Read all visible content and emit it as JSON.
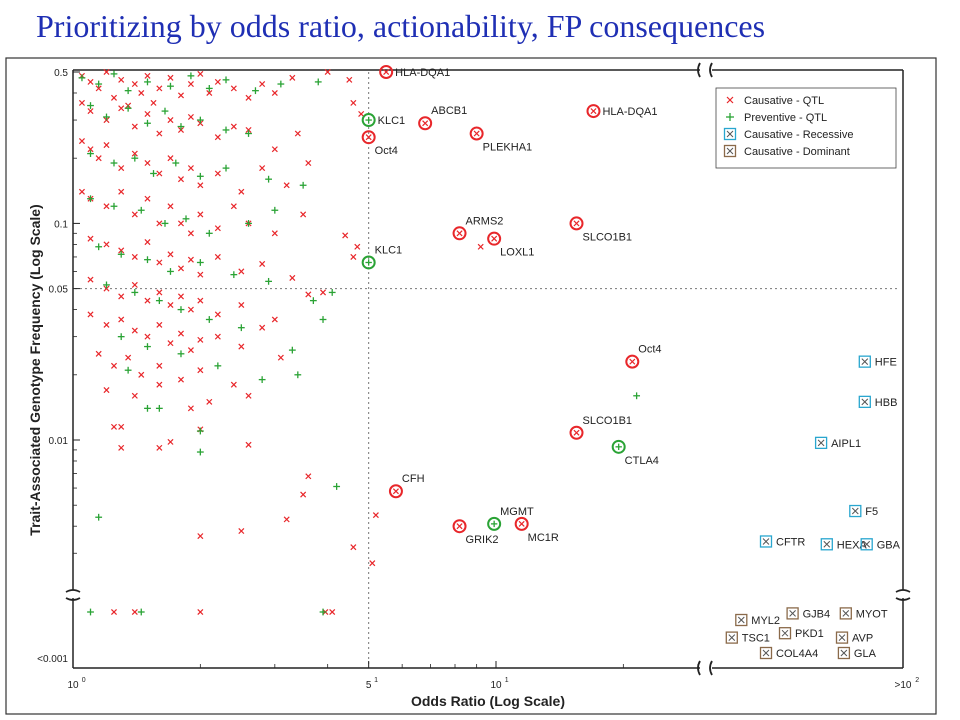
{
  "page": {
    "title": "Prioritizing by odds ratio, actionability, FP consequences"
  },
  "colors": {
    "qtl_causative": "#e8262a",
    "qtl_preventive": "#2aa335",
    "recessive": "#29a6cf",
    "dominant": "#8a6a4a",
    "title": "#1f2fb4"
  },
  "chart_data": {
    "type": "scatter",
    "xlabel": "Odds Ratio (Log Scale)",
    "ylabel": "Trait-Associated Genotype Frequency (Log Scale)",
    "xscale": "log",
    "yscale": "log",
    "xlim": [
      1,
      100
    ],
    "ylim": [
      0.001,
      0.5
    ],
    "x_ticks": [
      "10",
      "5",
      "10",
      ">10"
    ],
    "x_tick_exponents": [
      "0",
      "1",
      "1",
      "2"
    ],
    "y_ticks": [
      "0.5",
      "0.1",
      "0.05",
      "0.01",
      "<0.001"
    ],
    "reference_lines": {
      "x": 5,
      "y": 0.05,
      "style": "dotted"
    },
    "legend": {
      "placement": "top-right",
      "entries": [
        {
          "label": "Causative - QTL",
          "marker": "x",
          "color": "#e8262a"
        },
        {
          "label": "Preventive - QTL",
          "marker": "+",
          "color": "#2aa335"
        },
        {
          "label": "Causative - Recessive",
          "marker": "boxed-x",
          "color": "#29a6cf"
        },
        {
          "label": "Causative - Dominant",
          "marker": "boxed-x",
          "color": "#8a6a4a"
        }
      ]
    },
    "highlighted": [
      {
        "label": "HLA-DQA1",
        "x": 5.5,
        "y": 0.5,
        "class": "causative",
        "label_pos": "right"
      },
      {
        "label": "HLA-DQA1",
        "x": 17,
        "y": 0.33,
        "class": "causative",
        "label_pos": "right"
      },
      {
        "label": "KLC1",
        "x": 5,
        "y": 0.3,
        "class": "preventive",
        "label_pos": "right"
      },
      {
        "label": "Oct4",
        "x": 5,
        "y": 0.25,
        "class": "causative",
        "label_pos": "below-right"
      },
      {
        "label": "ABCB1",
        "x": 6.8,
        "y": 0.29,
        "class": "causative",
        "label_pos": "above-right"
      },
      {
        "label": "PLEKHA1",
        "x": 9,
        "y": 0.26,
        "class": "causative",
        "label_pos": "below-right"
      },
      {
        "label": "ARMS2",
        "x": 8.2,
        "y": 0.09,
        "class": "causative",
        "label_pos": "above-right"
      },
      {
        "label": "LOXL1",
        "x": 9.9,
        "y": 0.085,
        "class": "causative",
        "label_pos": "below-right"
      },
      {
        "label": "SLCO1B1",
        "x": 15.5,
        "y": 0.1,
        "class": "causative",
        "label_pos": "below-right"
      },
      {
        "label": "KLC1",
        "x": 5,
        "y": 0.066,
        "class": "preventive",
        "label_pos": "above-right"
      },
      {
        "label": "Oct4",
        "x": 21,
        "y": 0.023,
        "class": "causative",
        "label_pos": "above-right"
      },
      {
        "label": "SLCO1B1",
        "x": 15.5,
        "y": 0.0108,
        "class": "causative",
        "label_pos": "above-right"
      },
      {
        "label": "CTLA4",
        "x": 19.5,
        "y": 0.0093,
        "class": "preventive",
        "label_pos": "below-right"
      },
      {
        "label": "CFH",
        "x": 5.8,
        "y": 0.0058,
        "class": "causative",
        "label_pos": "above-right"
      },
      {
        "label": "MGMT",
        "x": 9.9,
        "y": 0.0041,
        "class": "preventive",
        "label_pos": "above-right"
      },
      {
        "label": "GRIK2",
        "x": 8.2,
        "y": 0.004,
        "class": "causative",
        "label_pos": "below-right"
      },
      {
        "label": "MC1R",
        "x": 11.5,
        "y": 0.0041,
        "class": "causative",
        "label_pos": "below-right"
      }
    ],
    "recessive": [
      {
        "label": "HFE",
        "row": "upper",
        "y": 0.023,
        "col": 3.6
      },
      {
        "label": "HBB",
        "row": "upper",
        "y": 0.015,
        "col": 3.6
      },
      {
        "label": "AIPL1",
        "row": "upper",
        "y": 0.0097,
        "col": 2.45
      },
      {
        "label": "F5",
        "row": "upper",
        "y": 0.0047,
        "col": 3.35
      },
      {
        "label": "CFTR",
        "row": "upper",
        "y": 0.0034,
        "col": 1.0
      },
      {
        "label": "HEXA",
        "row": "upper",
        "y": 0.0033,
        "col": 2.6
      },
      {
        "label": "GBA",
        "row": "upper",
        "y": 0.0033,
        "col": 3.65
      }
    ],
    "dominant": [
      {
        "label": "MYL2",
        "lane": 0,
        "col": 0.35
      },
      {
        "label": "GJB4",
        "lane": -0.3,
        "col": 1.7
      },
      {
        "label": "MYOT",
        "lane": -0.3,
        "col": 3.1
      },
      {
        "label": "TSC1",
        "lane": 0.8,
        "col": 0.1
      },
      {
        "label": "PKD1",
        "lane": 0.6,
        "col": 1.5
      },
      {
        "label": "AVP",
        "lane": 0.8,
        "col": 3.0
      },
      {
        "label": "COL4A4",
        "lane": 1.5,
        "col": 1.0
      },
      {
        "label": "GLA",
        "lane": 1.5,
        "col": 3.05
      }
    ],
    "background_points": {
      "causative": [
        [
          1.05,
          0.48
        ],
        [
          1.1,
          0.45
        ],
        [
          1.15,
          0.42
        ],
        [
          1.2,
          0.5
        ],
        [
          1.25,
          0.38
        ],
        [
          1.3,
          0.46
        ],
        [
          1.35,
          0.35
        ],
        [
          1.4,
          0.44
        ],
        [
          1.45,
          0.4
        ],
        [
          1.5,
          0.48
        ],
        [
          1.55,
          0.36
        ],
        [
          1.6,
          0.42
        ],
        [
          1.7,
          0.47
        ],
        [
          1.8,
          0.39
        ],
        [
          1.9,
          0.44
        ],
        [
          2.0,
          0.49
        ],
        [
          2.1,
          0.4
        ],
        [
          2.2,
          0.45
        ],
        [
          2.4,
          0.42
        ],
        [
          2.6,
          0.38
        ],
        [
          2.8,
          0.44
        ],
        [
          3.0,
          0.4
        ],
        [
          3.3,
          0.47
        ],
        [
          4.0,
          0.5
        ],
        [
          4.5,
          0.46
        ],
        [
          1.05,
          0.36
        ],
        [
          1.1,
          0.33
        ],
        [
          1.2,
          0.3
        ],
        [
          1.3,
          0.34
        ],
        [
          1.4,
          0.28
        ],
        [
          1.5,
          0.32
        ],
        [
          1.6,
          0.26
        ],
        [
          1.7,
          0.3
        ],
        [
          1.8,
          0.27
        ],
        [
          1.9,
          0.31
        ],
        [
          2.0,
          0.29
        ],
        [
          2.2,
          0.25
        ],
        [
          2.4,
          0.28
        ],
        [
          2.6,
          0.27
        ],
        [
          3.0,
          0.22
        ],
        [
          3.4,
          0.26
        ],
        [
          4.6,
          0.36
        ],
        [
          4.8,
          0.32
        ],
        [
          1.05,
          0.24
        ],
        [
          1.1,
          0.22
        ],
        [
          1.15,
          0.2
        ],
        [
          1.2,
          0.23
        ],
        [
          1.3,
          0.18
        ],
        [
          1.4,
          0.21
        ],
        [
          1.5,
          0.19
        ],
        [
          1.6,
          0.17
        ],
        [
          1.7,
          0.2
        ],
        [
          1.8,
          0.16
        ],
        [
          1.9,
          0.18
        ],
        [
          2.0,
          0.15
        ],
        [
          2.2,
          0.17
        ],
        [
          2.5,
          0.14
        ],
        [
          2.8,
          0.18
        ],
        [
          3.2,
          0.15
        ],
        [
          3.6,
          0.19
        ],
        [
          1.05,
          0.14
        ],
        [
          1.1,
          0.13
        ],
        [
          1.2,
          0.12
        ],
        [
          1.3,
          0.14
        ],
        [
          1.4,
          0.11
        ],
        [
          1.5,
          0.13
        ],
        [
          1.6,
          0.1
        ],
        [
          1.7,
          0.12
        ],
        [
          1.8,
          0.1
        ],
        [
          1.9,
          0.09
        ],
        [
          2.0,
          0.11
        ],
        [
          2.2,
          0.095
        ],
        [
          2.4,
          0.12
        ],
        [
          2.6,
          0.1
        ],
        [
          3.0,
          0.09
        ],
        [
          3.5,
          0.11
        ],
        [
          4.4,
          0.088
        ],
        [
          4.7,
          0.078
        ],
        [
          1.1,
          0.085
        ],
        [
          1.2,
          0.08
        ],
        [
          1.3,
          0.075
        ],
        [
          1.4,
          0.07
        ],
        [
          1.5,
          0.082
        ],
        [
          1.6,
          0.066
        ],
        [
          1.7,
          0.072
        ],
        [
          1.8,
          0.062
        ],
        [
          1.9,
          0.068
        ],
        [
          2.0,
          0.058
        ],
        [
          2.2,
          0.07
        ],
        [
          2.5,
          0.06
        ],
        [
          2.8,
          0.065
        ],
        [
          3.3,
          0.056
        ],
        [
          3.9,
          0.048
        ],
        [
          1.1,
          0.055
        ],
        [
          1.2,
          0.05
        ],
        [
          1.3,
          0.046
        ],
        [
          1.4,
          0.052
        ],
        [
          1.5,
          0.044
        ],
        [
          1.6,
          0.048
        ],
        [
          1.7,
          0.042
        ],
        [
          1.8,
          0.046
        ],
        [
          1.9,
          0.04
        ],
        [
          2.0,
          0.044
        ],
        [
          2.2,
          0.038
        ],
        [
          2.5,
          0.042
        ],
        [
          3.0,
          0.036
        ],
        [
          3.6,
          0.047
        ],
        [
          1.1,
          0.038
        ],
        [
          1.2,
          0.034
        ],
        [
          1.3,
          0.036
        ],
        [
          1.4,
          0.032
        ],
        [
          1.5,
          0.03
        ],
        [
          1.6,
          0.034
        ],
        [
          1.7,
          0.028
        ],
        [
          1.8,
          0.031
        ],
        [
          1.9,
          0.026
        ],
        [
          2.0,
          0.029
        ],
        [
          2.2,
          0.03
        ],
        [
          2.5,
          0.027
        ],
        [
          2.8,
          0.033
        ],
        [
          1.15,
          0.025
        ],
        [
          1.25,
          0.022
        ],
        [
          1.35,
          0.024
        ],
        [
          1.45,
          0.02
        ],
        [
          1.6,
          0.022
        ],
        [
          1.8,
          0.019
        ],
        [
          2.0,
          0.021
        ],
        [
          2.4,
          0.018
        ],
        [
          3.1,
          0.024
        ],
        [
          1.2,
          0.017
        ],
        [
          1.4,
          0.016
        ],
        [
          1.6,
          0.018
        ],
        [
          1.9,
          0.014
        ],
        [
          2.1,
          0.015
        ],
        [
          2.6,
          0.016
        ],
        [
          1.25,
          0.0115
        ],
        [
          1.3,
          0.0115
        ],
        [
          1.7,
          0.0098
        ],
        [
          2.0,
          0.0112
        ],
        [
          2.6,
          0.0095
        ],
        [
          1.3,
          0.0092
        ],
        [
          1.6,
          0.0092
        ],
        [
          3.6,
          0.0068
        ],
        [
          3.5,
          0.0056
        ],
        [
          2.0,
          0.0036
        ],
        [
          2.5,
          0.0038
        ],
        [
          3.2,
          0.0043
        ],
        [
          4.6,
          0.0032
        ],
        [
          5.2,
          0.0045
        ],
        [
          5.1,
          0.0027
        ],
        [
          9.2,
          0.078
        ],
        [
          4.6,
          0.07
        ],
        [
          1.25,
          0.0009
        ],
        [
          1.4,
          0.0009
        ],
        [
          2.0,
          0.0009
        ],
        [
          4.1,
          0.0009
        ],
        [
          3.95,
          0.0009
        ]
      ],
      "preventive": [
        [
          1.05,
          0.47
        ],
        [
          1.15,
          0.44
        ],
        [
          1.25,
          0.49
        ],
        [
          1.35,
          0.41
        ],
        [
          1.5,
          0.45
        ],
        [
          1.7,
          0.43
        ],
        [
          1.9,
          0.48
        ],
        [
          2.1,
          0.42
        ],
        [
          2.3,
          0.46
        ],
        [
          2.7,
          0.41
        ],
        [
          3.1,
          0.44
        ],
        [
          3.8,
          0.45
        ],
        [
          1.1,
          0.35
        ],
        [
          1.2,
          0.31
        ],
        [
          1.35,
          0.34
        ],
        [
          1.5,
          0.29
        ],
        [
          1.65,
          0.33
        ],
        [
          1.8,
          0.28
        ],
        [
          2.0,
          0.3
        ],
        [
          2.3,
          0.27
        ],
        [
          2.6,
          0.26
        ],
        [
          1.1,
          0.21
        ],
        [
          1.25,
          0.19
        ],
        [
          1.4,
          0.2
        ],
        [
          1.55,
          0.17
        ],
        [
          1.75,
          0.19
        ],
        [
          2.0,
          0.165
        ],
        [
          2.3,
          0.18
        ],
        [
          2.9,
          0.16
        ],
        [
          3.5,
          0.15
        ],
        [
          1.1,
          0.13
        ],
        [
          1.25,
          0.12
        ],
        [
          1.45,
          0.115
        ],
        [
          1.65,
          0.1
        ],
        [
          1.85,
          0.105
        ],
        [
          2.1,
          0.09
        ],
        [
          2.6,
          0.1
        ],
        [
          3.0,
          0.115
        ],
        [
          1.15,
          0.078
        ],
        [
          1.3,
          0.072
        ],
        [
          1.5,
          0.068
        ],
        [
          1.7,
          0.06
        ],
        [
          2.0,
          0.066
        ],
        [
          2.4,
          0.058
        ],
        [
          2.9,
          0.054
        ],
        [
          3.7,
          0.044
        ],
        [
          4.1,
          0.048
        ],
        [
          3.9,
          0.036
        ],
        [
          1.2,
          0.052
        ],
        [
          1.4,
          0.048
        ],
        [
          1.6,
          0.044
        ],
        [
          1.8,
          0.04
        ],
        [
          2.1,
          0.036
        ],
        [
          2.5,
          0.033
        ],
        [
          3.3,
          0.026
        ],
        [
          1.3,
          0.03
        ],
        [
          1.5,
          0.027
        ],
        [
          1.8,
          0.025
        ],
        [
          2.2,
          0.022
        ],
        [
          2.8,
          0.019
        ],
        [
          3.4,
          0.02
        ],
        [
          1.35,
          0.021
        ],
        [
          1.5,
          0.014
        ],
        [
          1.6,
          0.014
        ],
        [
          2.0,
          0.011
        ],
        [
          2.0,
          0.0088
        ],
        [
          1.15,
          0.0044
        ],
        [
          4.2,
          0.0061
        ],
        [
          21.5,
          0.016
        ],
        [
          1.1,
          0.0009
        ],
        [
          1.45,
          0.0009
        ],
        [
          3.9,
          0.0009
        ]
      ]
    }
  }
}
